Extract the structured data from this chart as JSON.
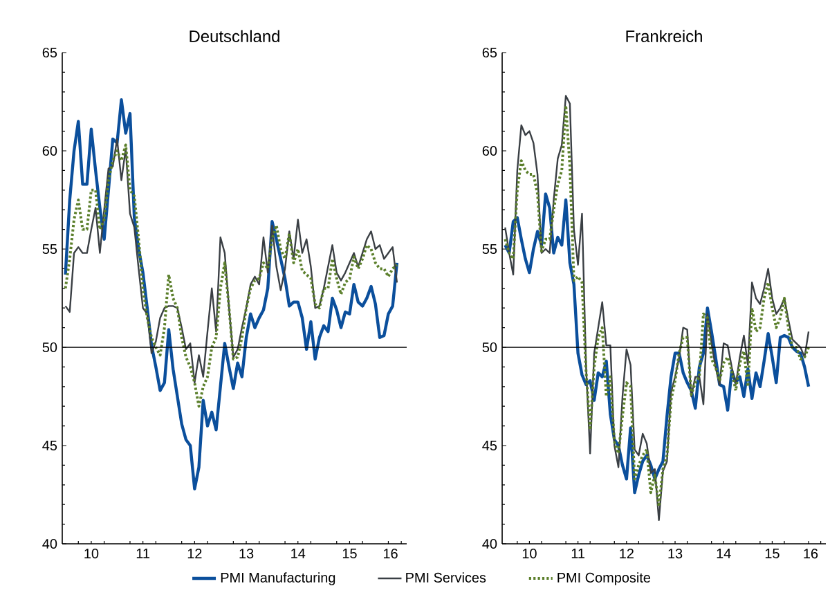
{
  "chart_data": [
    {
      "type": "line",
      "title": "Deutschland",
      "legend": "bottom",
      "xlim": [
        "2009-12-09",
        "2016-08-09"
      ],
      "ylim": [
        40,
        65
      ],
      "yticks": [
        40,
        45,
        50,
        55,
        60,
        65
      ],
      "xticks": [
        {
          "value": "2010-07-01",
          "label": "10"
        },
        {
          "value": "2011-07-01",
          "label": "11"
        },
        {
          "value": "2012-07-01",
          "label": "12"
        },
        {
          "value": "2013-07-01",
          "label": "13"
        },
        {
          "value": "2014-07-01",
          "label": "14"
        },
        {
          "value": "2015-07-01",
          "label": "15"
        },
        {
          "value": "2016-04-16",
          "label": "16"
        }
      ],
      "ref_lines": [
        {
          "axis": "y",
          "value": 50,
          "color": "#000000"
        }
      ],
      "x": [
        "2010-01",
        "2010-02",
        "2010-03",
        "2010-04",
        "2010-05",
        "2010-06",
        "2010-07",
        "2010-08",
        "2010-09",
        "2010-10",
        "2010-11",
        "2010-12",
        "2011-01",
        "2011-02",
        "2011-03",
        "2011-04",
        "2011-05",
        "2011-06",
        "2011-07",
        "2011-08",
        "2011-09",
        "2011-10",
        "2011-11",
        "2011-12",
        "2012-01",
        "2012-02",
        "2012-03",
        "2012-04",
        "2012-05",
        "2012-06",
        "2012-07",
        "2012-08",
        "2012-09",
        "2012-10",
        "2012-11",
        "2012-12",
        "2013-01",
        "2013-02",
        "2013-03",
        "2013-04",
        "2013-05",
        "2013-06",
        "2013-07",
        "2013-08",
        "2013-09",
        "2013-10",
        "2013-11",
        "2013-12",
        "2014-01",
        "2014-02",
        "2014-03",
        "2014-04",
        "2014-05",
        "2014-06",
        "2014-07",
        "2014-08",
        "2014-09",
        "2014-10",
        "2014-11",
        "2014-12",
        "2015-01",
        "2015-02",
        "2015-03",
        "2015-04",
        "2015-05",
        "2015-06",
        "2015-07",
        "2015-08",
        "2015-09",
        "2015-10",
        "2015-11",
        "2015-12",
        "2016-01",
        "2016-02",
        "2016-03",
        "2016-04",
        "2016-05",
        "2016-06"
      ],
      "series": [
        {
          "name": "PMI Manufacturing",
          "color": "#0b4f9c",
          "line_style": "solid",
          "values": [
            53.7,
            57.5,
            60.0,
            61.5,
            58.3,
            58.3,
            61.1,
            59.0,
            57.1,
            55.5,
            58.0,
            60.6,
            60.4,
            62.6,
            60.9,
            61.9,
            56.6,
            55.0,
            53.8,
            52.0,
            50.1,
            49.0,
            47.8,
            48.2,
            50.9,
            48.9,
            47.5,
            46.1,
            45.3,
            45.0,
            42.8,
            43.9,
            47.3,
            46.0,
            46.7,
            45.8,
            48.0,
            50.2,
            49.0,
            47.9,
            49.2,
            48.5,
            50.5,
            51.7,
            51.0,
            51.5,
            51.9,
            53.0,
            56.4,
            55.5,
            54.5,
            53.5,
            52.1,
            52.3,
            52.3,
            51.5,
            49.9,
            51.3,
            49.4,
            50.5,
            51.1,
            50.8,
            52.5,
            51.9,
            51.0,
            51.8,
            51.7,
            53.2,
            52.3,
            52.1,
            52.5,
            53.1,
            52.2,
            50.5,
            50.6,
            51.7,
            52.1,
            54.3
          ]
        },
        {
          "name": "PMI Services",
          "color": "#3a3f44",
          "line_style": "solid",
          "values": [
            52.1,
            51.8,
            54.8,
            55.1,
            54.8,
            54.8,
            56.0,
            57.1,
            54.8,
            57.0,
            59.1,
            59.2,
            60.6,
            58.5,
            60.1,
            56.8,
            56.1,
            54.0,
            52.0,
            51.7,
            49.7,
            50.3,
            51.5,
            52.0,
            52.1,
            52.1,
            52.0,
            51.0,
            49.9,
            50.2,
            48.2,
            49.6,
            48.5,
            50.8,
            53.0,
            50.8,
            55.6,
            54.8,
            52.0,
            49.5,
            49.9,
            51.0,
            52.0,
            53.2,
            53.6,
            53.2,
            55.6,
            53.8,
            56.2,
            54.1,
            52.9,
            54.0,
            55.9,
            54.5,
            56.5,
            54.8,
            55.5,
            54.1,
            52.0,
            52.1,
            53.0,
            54.1,
            55.2,
            53.8,
            53.4,
            53.8,
            54.3,
            54.8,
            54.1,
            54.8,
            55.5,
            55.9,
            55.0,
            55.2,
            54.5,
            54.8,
            55.1,
            53.3
          ]
        },
        {
          "name": "PMI Composite",
          "color": "#5b7f2b",
          "line_style": "dotted",
          "values": [
            53.0,
            54.5,
            56.5,
            57.5,
            56.0,
            56.0,
            58.0,
            58.0,
            56.0,
            56.5,
            58.5,
            59.5,
            60.0,
            59.5,
            60.3,
            58.0,
            57.7,
            55.5,
            53.0,
            51.5,
            50.5,
            50.0,
            49.6,
            51.0,
            53.7,
            52.5,
            52.0,
            50.5,
            49.5,
            49.0,
            48.2,
            47.0,
            48.0,
            48.5,
            50.0,
            50.5,
            53.0,
            54.3,
            52.0,
            49.4,
            49.5,
            50.5,
            52.0,
            53.0,
            53.4,
            53.5,
            54.3,
            54.0,
            55.5,
            56.2,
            55.0,
            54.5,
            55.8,
            54.3,
            55.0,
            53.9,
            53.7,
            53.5,
            52.2,
            52.0,
            53.0,
            53.0,
            54.5,
            53.5,
            52.7,
            53.3,
            53.5,
            54.6,
            54.0,
            54.5,
            55.2,
            55.0,
            54.3,
            54.0,
            54.0,
            53.6,
            54.0,
            54.2
          ]
        }
      ]
    },
    {
      "type": "line",
      "title": "Frankreich",
      "xlim": [
        "2009-12-09",
        "2016-08-09"
      ],
      "ylim": [
        40,
        65
      ],
      "yticks": [
        40,
        45,
        50,
        55,
        60,
        65
      ],
      "xticks": [
        {
          "value": "2010-07-01",
          "label": "10"
        },
        {
          "value": "2011-07-01",
          "label": "11"
        },
        {
          "value": "2012-07-01",
          "label": "12"
        },
        {
          "value": "2013-07-01",
          "label": "13"
        },
        {
          "value": "2014-07-01",
          "label": "14"
        },
        {
          "value": "2015-07-01",
          "label": "15"
        },
        {
          "value": "2016-04-16",
          "label": "16"
        }
      ],
      "ref_lines": [
        {
          "axis": "y",
          "value": 50,
          "color": "#000000"
        }
      ],
      "x": [
        "2010-01",
        "2010-02",
        "2010-03",
        "2010-04",
        "2010-05",
        "2010-06",
        "2010-07",
        "2010-08",
        "2010-09",
        "2010-10",
        "2010-11",
        "2010-12",
        "2011-01",
        "2011-02",
        "2011-03",
        "2011-04",
        "2011-05",
        "2011-06",
        "2011-07",
        "2011-08",
        "2011-09",
        "2011-10",
        "2011-11",
        "2011-12",
        "2012-01",
        "2012-02",
        "2012-03",
        "2012-04",
        "2012-05",
        "2012-06",
        "2012-07",
        "2012-08",
        "2012-09",
        "2012-10",
        "2012-11",
        "2012-12",
        "2013-01",
        "2013-02",
        "2013-03",
        "2013-04",
        "2013-05",
        "2013-06",
        "2013-07",
        "2013-08",
        "2013-09",
        "2013-10",
        "2013-11",
        "2013-12",
        "2014-01",
        "2014-02",
        "2014-03",
        "2014-04",
        "2014-05",
        "2014-06",
        "2014-07",
        "2014-08",
        "2014-09",
        "2014-10",
        "2014-11",
        "2014-12",
        "2015-01",
        "2015-02",
        "2015-03",
        "2015-04",
        "2015-05",
        "2015-06",
        "2015-07",
        "2015-08",
        "2015-09",
        "2015-10",
        "2015-11",
        "2015-12",
        "2016-01",
        "2016-02",
        "2016-03",
        "2016-04"
      ],
      "series": [
        {
          "color": "#0b4f9c",
          "line_style": "solid",
          "values": [
            55.2,
            54.8,
            56.4,
            56.6,
            55.5,
            54.5,
            53.8,
            55.0,
            55.9,
            55.2,
            57.8,
            57.1,
            54.8,
            55.6,
            55.2,
            57.5,
            54.3,
            53.2,
            49.7,
            48.6,
            48.1,
            48.3,
            47.3,
            48.7,
            48.5,
            49.3,
            46.6,
            45.3,
            45.0,
            44.0,
            43.3,
            45.9,
            42.6,
            43.5,
            44.2,
            44.5,
            44.0,
            43.3,
            43.8,
            44.2,
            46.5,
            48.5,
            49.7,
            49.7,
            48.7,
            48.2,
            47.8,
            46.9,
            49.0,
            49.7,
            52.0,
            50.8,
            49.5,
            48.1,
            48.0,
            46.8,
            48.8,
            48.2,
            48.5,
            47.5,
            48.9,
            47.4,
            48.7,
            48.0,
            49.3,
            50.7,
            49.5,
            48.2,
            50.5,
            50.6,
            50.5,
            50.0,
            49.8,
            49.7,
            49.0,
            48.0
          ]
        },
        {
          "color": "#3a3f44",
          "line_style": "solid",
          "values": [
            56.1,
            54.8,
            53.7,
            59.0,
            61.3,
            60.8,
            61.0,
            60.4,
            58.8,
            54.8,
            55.0,
            54.8,
            57.5,
            59.6,
            60.3,
            62.8,
            62.4,
            56.0,
            54.2,
            56.8,
            49.0,
            44.6,
            49.7,
            51.0,
            52.3,
            50.1,
            50.1,
            45.0,
            43.9,
            47.5,
            49.9,
            49.1,
            44.8,
            44.5,
            45.6,
            45.1,
            43.6,
            43.8,
            41.2,
            43.7,
            44.2,
            47.7,
            48.5,
            49.5,
            51.0,
            50.9,
            47.5,
            48.5,
            48.5,
            47.1,
            51.7,
            50.2,
            49.0,
            48.1,
            50.2,
            50.1,
            49.0,
            48.1,
            49.5,
            50.6,
            49.1,
            53.3,
            52.5,
            52.2,
            53.0,
            54.0,
            52.5,
            51.7,
            52.0,
            52.5,
            51.4,
            50.4,
            50.2,
            50.0,
            49.5,
            50.8
          ]
        },
        {
          "color": "#5b7f2b",
          "line_style": "dotted",
          "values": [
            55.5,
            54.8,
            54.5,
            58.0,
            59.5,
            59.0,
            58.8,
            58.8,
            57.8,
            54.9,
            55.5,
            55.5,
            57.0,
            58.3,
            59.0,
            62.3,
            59.2,
            53.4,
            53.6,
            53.3,
            48.8,
            45.8,
            49.0,
            50.5,
            51.0,
            47.5,
            48.5,
            45.2,
            44.6,
            46.5,
            48.2,
            48.0,
            43.3,
            44.0,
            44.5,
            44.8,
            42.6,
            43.5,
            41.9,
            43.8,
            44.5,
            47.3,
            48.3,
            49.7,
            50.5,
            50.5,
            47.6,
            48.2,
            48.5,
            51.7,
            51.5,
            49.4,
            49.0,
            48.3,
            49.2,
            49.5,
            48.8,
            47.8,
            49.2,
            49.8,
            48.0,
            52.0,
            50.8,
            51.0,
            52.5,
            53.3,
            52.0,
            51.0,
            51.5,
            52.5,
            51.0,
            50.0,
            50.0,
            49.4,
            49.5,
            50.0
          ]
        }
      ]
    }
  ]
}
